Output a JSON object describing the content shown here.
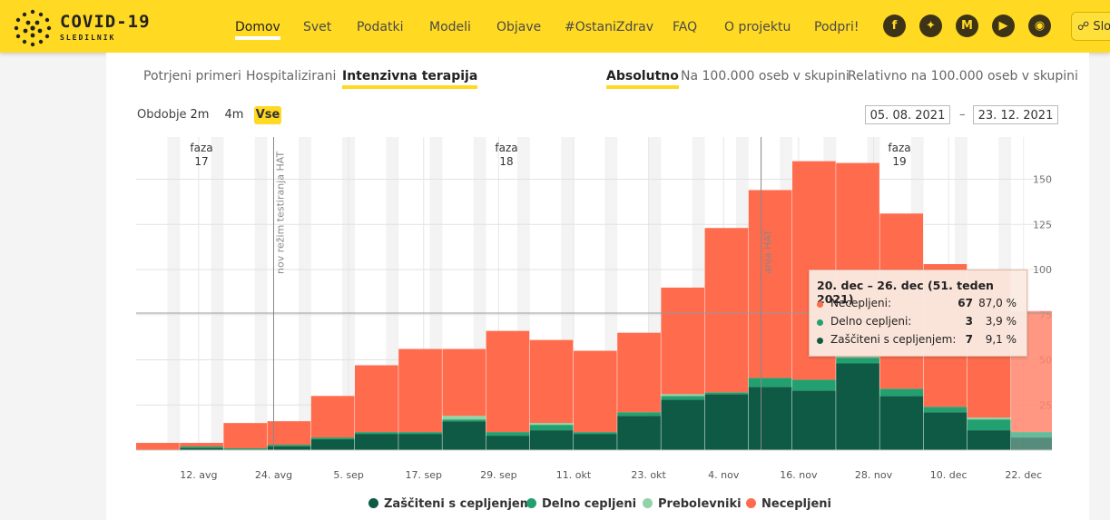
{
  "brand": {
    "title": "COVID-19",
    "subtitle": "SLEDILNIK"
  },
  "nav": [
    {
      "label": "Domov",
      "active": true
    },
    {
      "label": "Svet"
    },
    {
      "label": "Podatki"
    },
    {
      "label": "Modeli"
    },
    {
      "label": "Objave"
    },
    {
      "label": "#OstaniZdrav"
    },
    {
      "label": "FAQ"
    },
    {
      "label": "O projektu"
    },
    {
      "label": "Podpri!"
    }
  ],
  "social_icons": [
    "facebook-icon",
    "twitter-icon",
    "medium-icon",
    "youtube-icon",
    "github-icon"
  ],
  "language": {
    "label": "Slo"
  },
  "metric_tabs": [
    "Potrjeni primeri",
    "Hospitalizirani",
    "Intenzivna terapija"
  ],
  "scale_tabs": [
    "Absolutno",
    "Na 100.000 oseb v skupini",
    "Relativno na 100.000 oseb v skupini"
  ],
  "period": {
    "label": "Obdobje",
    "options": [
      "2m",
      "4m",
      "Vse"
    ],
    "selected": "Vse"
  },
  "date_range": {
    "from": "05. 08. 2021",
    "separator": "–",
    "to": "23. 12. 2021"
  },
  "tooltip": {
    "title": "20. dec – 26. dec (51. teden 2021)",
    "rows": [
      {
        "label": "Necepljeni:",
        "value": "67",
        "pct": "87,0 %",
        "color": "#ff6b4d"
      },
      {
        "label": "Delno cepljeni:",
        "value": "3",
        "pct": "3,9 %",
        "color": "#23a06f"
      },
      {
        "label": "Zaščiteni s cepljenjem:",
        "value": "7",
        "pct": "9,1 %",
        "color": "#0e5a44"
      }
    ]
  },
  "chart_data": {
    "type": "bar",
    "stacked": true,
    "weeks": [
      "W31",
      "W32",
      "W33",
      "W34",
      "W35",
      "W36",
      "W37",
      "W38",
      "W39",
      "W40",
      "W41",
      "W42",
      "W43",
      "W44",
      "W45",
      "W46",
      "W47",
      "W48",
      "W49",
      "W50",
      "W51"
    ],
    "series": [
      {
        "name": "Zaščiteni s cepljenjem",
        "color": "#0e5a44",
        "values": [
          0,
          1,
          0,
          2,
          6,
          9,
          9,
          16,
          8,
          11,
          9,
          19,
          28,
          31,
          35,
          33,
          48,
          30,
          21,
          11,
          7
        ]
      },
      {
        "name": "Delno cepljeni",
        "color": "#23a06f",
        "values": [
          0,
          1,
          1,
          1,
          1,
          1,
          1,
          1,
          2,
          3,
          1,
          2,
          2,
          1,
          5,
          6,
          3,
          4,
          3,
          6,
          3
        ]
      },
      {
        "name": "Prebolevniki",
        "color": "#8fd3a6",
        "values": [
          0,
          0,
          0,
          0,
          0,
          0,
          0,
          2,
          0,
          1,
          0,
          0,
          1,
          0,
          0,
          0,
          1,
          0,
          0,
          1,
          0
        ]
      },
      {
        "name": "Necepljeni",
        "color": "#ff6b4d",
        "values": [
          4,
          2,
          14,
          13,
          23,
          37,
          46,
          37,
          56,
          46,
          45,
          44,
          59,
          91,
          104,
          121,
          107,
          97,
          79,
          82,
          67
        ]
      }
    ],
    "phases": [
      {
        "label": "faza",
        "number": "17"
      },
      {
        "label": "faza",
        "number": "18"
      },
      {
        "label": "faza",
        "number": "19"
      }
    ],
    "annotations": [
      {
        "label": "nov režim testiranja HAT",
        "date": "2021-08-24"
      },
      {
        "label": "anja HAT",
        "date": "2021-11-10"
      }
    ],
    "x_tick_labels": [
      "12. avg",
      "24. avg",
      "5. sep",
      "17. sep",
      "29. sep",
      "11. okt",
      "23. okt",
      "4. nov",
      "16. nov",
      "28. nov",
      "10. dec",
      "22. dec"
    ],
    "y_ticks": [
      25,
      50,
      75,
      100,
      125,
      150
    ],
    "y_tick_labels": [
      "25",
      "50",
      "75",
      "100",
      "125",
      "150"
    ],
    "ylim": [
      0,
      175
    ],
    "highlighted_week": "W51"
  },
  "colors": {
    "accent": "#ffd922"
  }
}
